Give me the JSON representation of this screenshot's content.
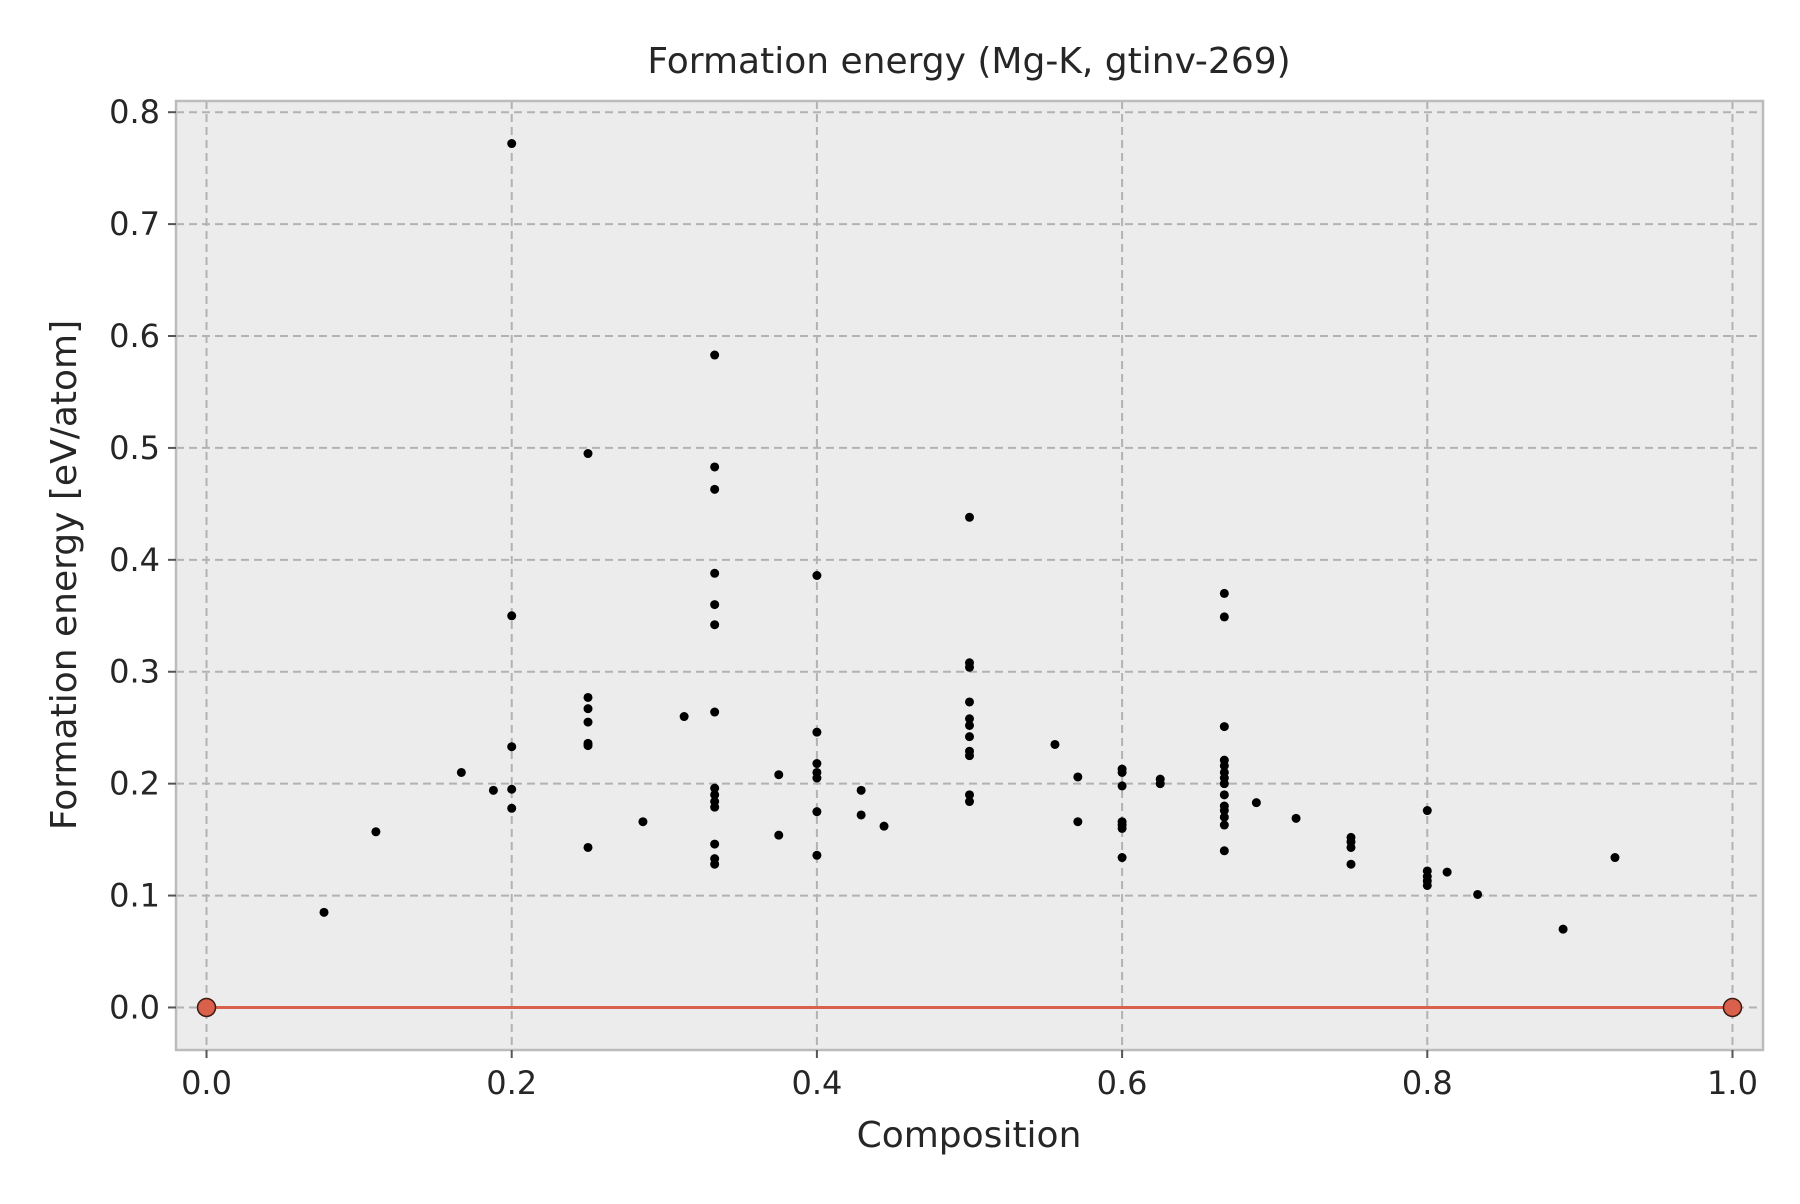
{
  "chart_data": {
    "type": "scatter",
    "title": "Formation energy (Mg-K, gtinv-269)",
    "xlabel": "Composition",
    "ylabel": "Formation energy [eV/atom]",
    "xlim": [
      -0.02,
      1.02
    ],
    "ylim": [
      -0.038,
      0.81
    ],
    "xticks": [
      0.0,
      0.2,
      0.4,
      0.6,
      0.8,
      1.0
    ],
    "xtick_labels": [
      "0.0",
      "0.2",
      "0.4",
      "0.6",
      "0.8",
      "1.0"
    ],
    "yticks": [
      0.0,
      0.1,
      0.2,
      0.3,
      0.4,
      0.5,
      0.6,
      0.7,
      0.8
    ],
    "ytick_labels": [
      "0.0",
      "0.1",
      "0.2",
      "0.3",
      "0.4",
      "0.5",
      "0.6",
      "0.7",
      "0.8"
    ],
    "grid": true,
    "background_color": "#ececec",
    "grid_color": "#b2b2b2",
    "series": [
      {
        "color": "#000000",
        "marker": "point",
        "points": [
          [
            0.077,
            0.085
          ],
          [
            0.111,
            0.157
          ],
          [
            0.167,
            0.21
          ],
          [
            0.188,
            0.194
          ],
          [
            0.2,
            0.772
          ],
          [
            0.2,
            0.35
          ],
          [
            0.2,
            0.233
          ],
          [
            0.2,
            0.195
          ],
          [
            0.2,
            0.178
          ],
          [
            0.25,
            0.495
          ],
          [
            0.25,
            0.277
          ],
          [
            0.25,
            0.267
          ],
          [
            0.25,
            0.255
          ],
          [
            0.25,
            0.236
          ],
          [
            0.25,
            0.234
          ],
          [
            0.25,
            0.143
          ],
          [
            0.286,
            0.166
          ],
          [
            0.313,
            0.26
          ],
          [
            0.333,
            0.583
          ],
          [
            0.333,
            0.483
          ],
          [
            0.333,
            0.463
          ],
          [
            0.333,
            0.388
          ],
          [
            0.333,
            0.36
          ],
          [
            0.333,
            0.342
          ],
          [
            0.333,
            0.264
          ],
          [
            0.333,
            0.196
          ],
          [
            0.333,
            0.19
          ],
          [
            0.333,
            0.184
          ],
          [
            0.333,
            0.179
          ],
          [
            0.333,
            0.146
          ],
          [
            0.333,
            0.133
          ],
          [
            0.333,
            0.128
          ],
          [
            0.375,
            0.208
          ],
          [
            0.375,
            0.154
          ],
          [
            0.4,
            0.386
          ],
          [
            0.4,
            0.246
          ],
          [
            0.4,
            0.218
          ],
          [
            0.4,
            0.21
          ],
          [
            0.4,
            0.205
          ],
          [
            0.4,
            0.175
          ],
          [
            0.4,
            0.136
          ],
          [
            0.429,
            0.194
          ],
          [
            0.429,
            0.172
          ],
          [
            0.444,
            0.162
          ],
          [
            0.5,
            0.438
          ],
          [
            0.5,
            0.308
          ],
          [
            0.5,
            0.304
          ],
          [
            0.5,
            0.273
          ],
          [
            0.5,
            0.258
          ],
          [
            0.5,
            0.252
          ],
          [
            0.5,
            0.242
          ],
          [
            0.5,
            0.229
          ],
          [
            0.5,
            0.225
          ],
          [
            0.5,
            0.19
          ],
          [
            0.5,
            0.184
          ],
          [
            0.556,
            0.235
          ],
          [
            0.571,
            0.206
          ],
          [
            0.571,
            0.166
          ],
          [
            0.6,
            0.213
          ],
          [
            0.6,
            0.21
          ],
          [
            0.6,
            0.198
          ],
          [
            0.6,
            0.166
          ],
          [
            0.6,
            0.163
          ],
          [
            0.6,
            0.16
          ],
          [
            0.6,
            0.134
          ],
          [
            0.625,
            0.204
          ],
          [
            0.625,
            0.2
          ],
          [
            0.667,
            0.37
          ],
          [
            0.667,
            0.349
          ],
          [
            0.667,
            0.251
          ],
          [
            0.667,
            0.221
          ],
          [
            0.667,
            0.216
          ],
          [
            0.667,
            0.21
          ],
          [
            0.667,
            0.205
          ],
          [
            0.667,
            0.2
          ],
          [
            0.667,
            0.19
          ],
          [
            0.667,
            0.18
          ],
          [
            0.667,
            0.176
          ],
          [
            0.667,
            0.17
          ],
          [
            0.667,
            0.163
          ],
          [
            0.667,
            0.14
          ],
          [
            0.688,
            0.183
          ],
          [
            0.714,
            0.169
          ],
          [
            0.75,
            0.152
          ],
          [
            0.75,
            0.148
          ],
          [
            0.75,
            0.143
          ],
          [
            0.75,
            0.128
          ],
          [
            0.8,
            0.176
          ],
          [
            0.8,
            0.122
          ],
          [
            0.8,
            0.117
          ],
          [
            0.8,
            0.113
          ],
          [
            0.8,
            0.109
          ],
          [
            0.813,
            0.121
          ],
          [
            0.833,
            0.101
          ],
          [
            0.889,
            0.07
          ],
          [
            0.923,
            0.134
          ]
        ]
      },
      {
        "color": "#d9604a",
        "marker": "circle",
        "line": true,
        "points": [
          [
            0.0,
            0.0
          ],
          [
            1.0,
            0.0
          ]
        ]
      }
    ]
  }
}
